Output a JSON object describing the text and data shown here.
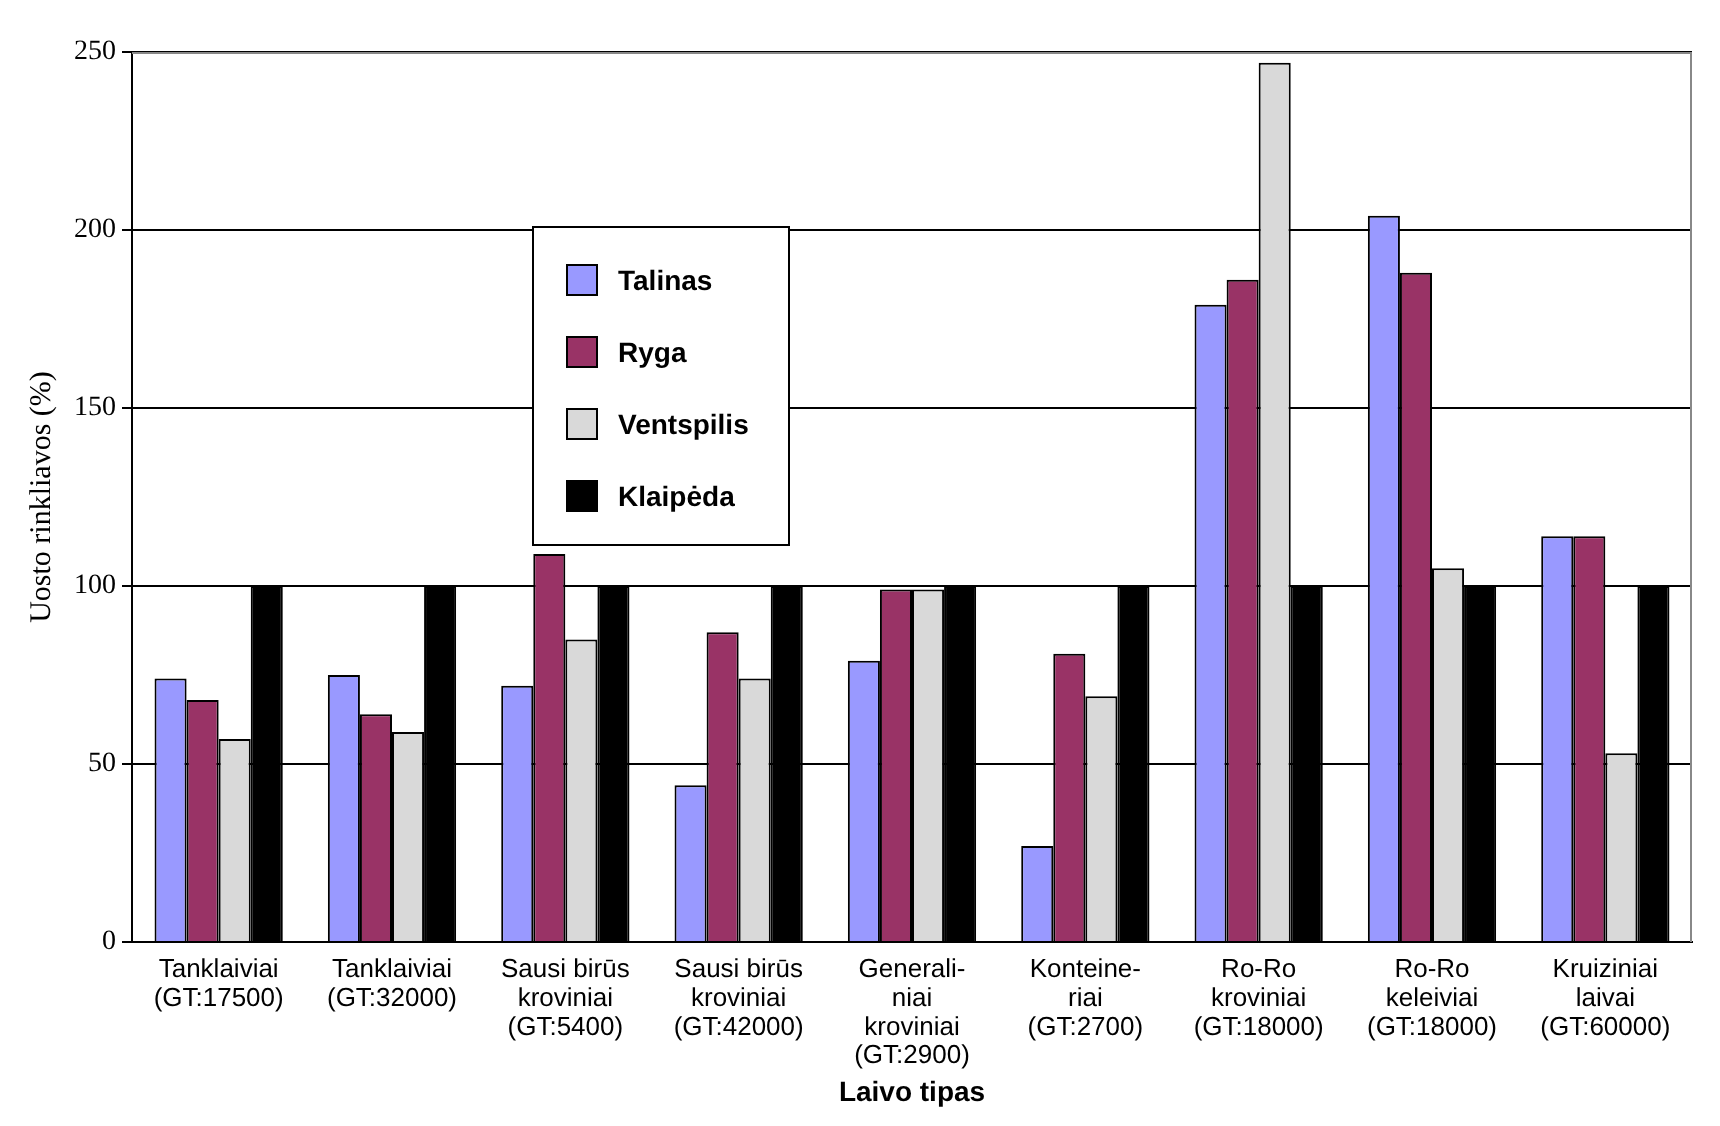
{
  "chart_data": {
    "type": "bar",
    "ylabel": "Uosto rinkliavos (%)",
    "xlabel": "Laivo tipas",
    "categories": [
      "Tanklaiviai\n(GT:17500)",
      "Tanklaiviai\n(GT:32000)",
      "Sausi birūs\nkroviniai\n(GT:5400)",
      "Sausi birūs\nkroviniai\n(GT:42000)",
      "Generali-\nniai\nkroviniai\n(GT:2900)",
      "Konteine-\nriai\n(GT:2700)",
      "Ro-Ro\nkroviniai\n(GT:18000)",
      "Ro-Ro\nkeleiviai\n(GT:18000)",
      "Kruiziniai\nlaivai\n(GT:60000)"
    ],
    "series": [
      {
        "name": "Talinas",
        "color": "#9999ff",
        "values": [
          74,
          75,
          72,
          44,
          79,
          27,
          179,
          204,
          114
        ]
      },
      {
        "name": "Ryga",
        "color": "#993366",
        "values": [
          68,
          64,
          109,
          87,
          99,
          81,
          186,
          188,
          114
        ]
      },
      {
        "name": "Ventspilis",
        "color": "#d9d9d9",
        "values": [
          57,
          59,
          85,
          74,
          99,
          69,
          247,
          105,
          53
        ]
      },
      {
        "name": "Klaipėda",
        "color": "#000000",
        "values": [
          100,
          100,
          100,
          100,
          100,
          100,
          100,
          100,
          100
        ]
      }
    ],
    "ylim": [
      0,
      250
    ],
    "yticks": [
      0,
      50,
      100,
      150,
      200,
      250
    ],
    "grid": "y",
    "legend": "top"
  }
}
